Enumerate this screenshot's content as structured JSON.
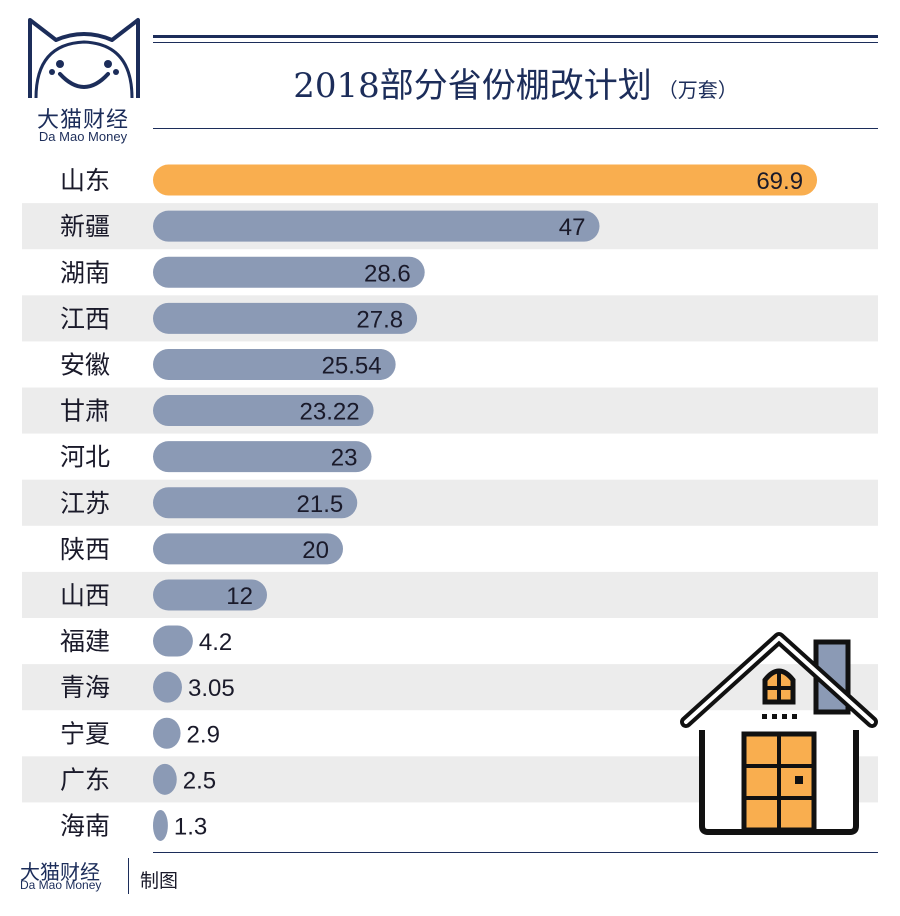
{
  "brand": {
    "name_cn": "大猫财经",
    "name_en": "Da Mao Money"
  },
  "footer": {
    "credit": "制图"
  },
  "colors": {
    "highlight_bar": "#f9ae4f",
    "normal_bar": "#8b9ab5",
    "stripe": "#ececec",
    "navy": "#1c2d5a"
  },
  "chart_data": {
    "type": "bar",
    "orientation": "horizontal",
    "title": "2018部分省份棚改计划",
    "unit": "（万套）",
    "categories": [
      "山东",
      "新疆",
      "湖南",
      "江西",
      "安徽",
      "甘肃",
      "河北",
      "江苏",
      "陕西",
      "山西",
      "福建",
      "青海",
      "宁夏",
      "广东",
      "海南"
    ],
    "values": [
      69.9,
      47,
      28.6,
      27.8,
      25.54,
      23.22,
      23,
      21.5,
      20,
      12,
      4.2,
      3.05,
      2.9,
      2.5,
      1.3
    ],
    "value_labels": [
      "69.9",
      "47",
      "28.6",
      "27.8",
      "25.54",
      "23.22",
      "23",
      "21.5",
      "20",
      "12",
      "4.2",
      "3.05",
      "2.9",
      "2.5",
      "1.3"
    ],
    "highlight_index": 0,
    "xlim": [
      0,
      70
    ],
    "grid": false,
    "legend": "none"
  }
}
